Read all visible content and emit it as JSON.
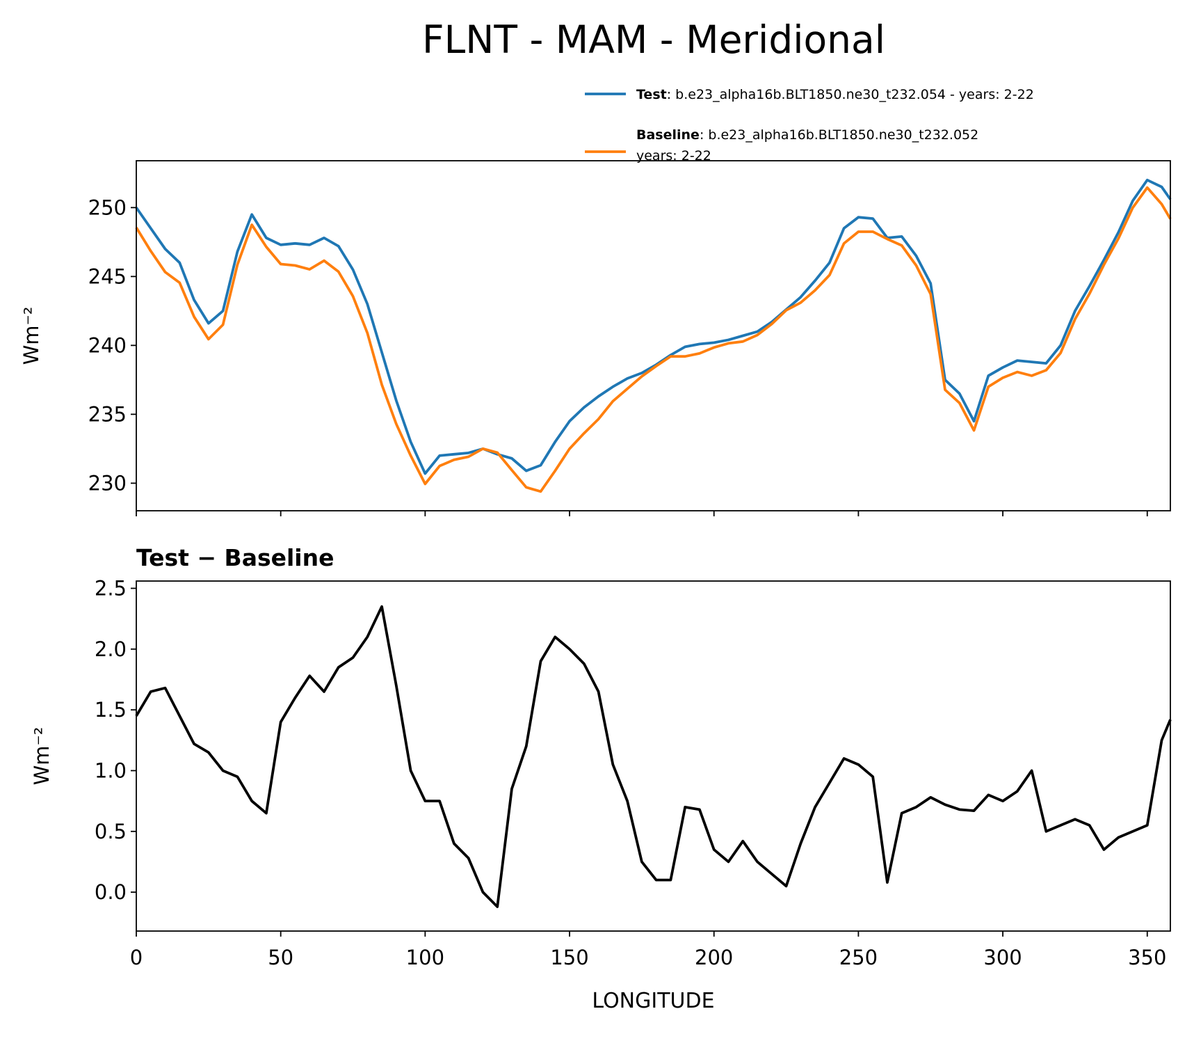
{
  "chart_data": [
    {
      "type": "line",
      "title": "FLNT - MAM - Meridional",
      "ylabel": "Wm⁻²",
      "x": [
        0,
        5,
        10,
        15,
        20,
        25,
        30,
        35,
        40,
        45,
        50,
        55,
        60,
        65,
        70,
        75,
        80,
        85,
        90,
        95,
        100,
        105,
        110,
        115,
        120,
        125,
        130,
        135,
        140,
        145,
        150,
        155,
        160,
        165,
        170,
        175,
        180,
        185,
        190,
        195,
        200,
        205,
        210,
        215,
        220,
        225,
        230,
        235,
        240,
        245,
        250,
        255,
        260,
        265,
        270,
        275,
        280,
        285,
        290,
        295,
        300,
        305,
        310,
        315,
        320,
        325,
        330,
        335,
        340,
        345,
        350,
        355,
        358
      ],
      "series": [
        {
          "name": "Test",
          "label_lines": [
            ": b.e23_alpha16b.BLT1850.ne30_t232.054 - years: 2-22"
          ],
          "color": "#1f77b4",
          "values": [
            250.0,
            248.5,
            247,
            246,
            243.3,
            241.6,
            242.5,
            246.8,
            249.5,
            247.8,
            247.3,
            247.4,
            247.3,
            247.8,
            247.2,
            245.5,
            243,
            239.5,
            236,
            233,
            230.7,
            232,
            232.1,
            232.2,
            232.5,
            232.1,
            231.8,
            230.9,
            231.3,
            233,
            234.5,
            235.5,
            236.3,
            237,
            237.6,
            238,
            238.6,
            239.3,
            239.9,
            240.1,
            240.2,
            240.4,
            240.7,
            241,
            241.7,
            242.6,
            243.5,
            244.7,
            246,
            248.5,
            249.3,
            249.2,
            247.8,
            247.9,
            246.5,
            244.5,
            237.5,
            236.5,
            234.5,
            237.8,
            238.4,
            238.9,
            238.8,
            238.7,
            240,
            242.5,
            244.3,
            246.2,
            248.2,
            250.5,
            252.0,
            251.5,
            250.6
          ]
        },
        {
          "name": "Baseline",
          "label_lines": [
            ": b.e23_alpha16b.BLT1850.ne30_t232.052",
            "years: 2-22"
          ],
          "color": "#ff7f0e",
          "values": [
            248.55,
            246.85,
            245.32,
            244.55,
            242.08,
            240.45,
            241.5,
            245.85,
            248.75,
            247.15,
            245.9,
            245.8,
            245.52,
            246.15,
            245.35,
            243.57,
            240.9,
            237.15,
            234.3,
            232.0,
            229.95,
            231.25,
            231.7,
            231.92,
            232.5,
            232.22,
            230.95,
            229.7,
            229.4,
            230.9,
            232.5,
            233.62,
            234.65,
            235.95,
            236.85,
            237.75,
            238.5,
            239.2,
            239.2,
            239.42,
            239.85,
            240.15,
            240.28,
            240.75,
            241.55,
            242.55,
            243.1,
            244.0,
            245.1,
            247.4,
            248.25,
            248.25,
            247.72,
            247.25,
            245.8,
            243.72,
            236.78,
            235.82,
            233.83,
            237.0,
            237.65,
            238.07,
            237.8,
            238.2,
            239.45,
            241.9,
            243.75,
            245.85,
            247.75,
            250.0,
            251.45,
            250.25,
            249.18
          ]
        }
      ],
      "xlim": [
        0,
        358
      ],
      "xticks": [
        0,
        50,
        100,
        150,
        200,
        250,
        300,
        350
      ],
      "ylim": [
        228.0,
        253.4
      ],
      "yticks": [
        230,
        235,
        240,
        245,
        250
      ]
    },
    {
      "type": "line",
      "title": "Test − Baseline",
      "ylabel": "Wm⁻²",
      "xlabel": "LONGITUDE",
      "x": [
        0,
        5,
        10,
        15,
        20,
        25,
        30,
        35,
        40,
        45,
        50,
        55,
        60,
        65,
        70,
        75,
        80,
        85,
        90,
        95,
        100,
        105,
        110,
        115,
        120,
        125,
        130,
        135,
        140,
        145,
        150,
        155,
        160,
        165,
        170,
        175,
        180,
        185,
        190,
        195,
        200,
        205,
        210,
        215,
        220,
        225,
        230,
        235,
        240,
        245,
        250,
        255,
        260,
        265,
        270,
        275,
        280,
        285,
        290,
        295,
        300,
        305,
        310,
        315,
        320,
        325,
        330,
        335,
        340,
        345,
        350,
        355,
        358
      ],
      "series": [
        {
          "color": "#000000",
          "values": [
            1.45,
            1.65,
            1.68,
            1.45,
            1.22,
            1.15,
            1.0,
            0.95,
            0.75,
            0.65,
            1.4,
            1.6,
            1.78,
            1.65,
            1.85,
            1.93,
            2.1,
            2.35,
            1.7,
            1.0,
            0.75,
            0.75,
            0.4,
            0.28,
            0.0,
            -0.12,
            0.85,
            1.2,
            1.9,
            2.1,
            2.0,
            1.88,
            1.65,
            1.05,
            0.75,
            0.25,
            0.1,
            0.1,
            0.7,
            0.68,
            0.35,
            0.25,
            0.42,
            0.25,
            0.15,
            0.05,
            0.4,
            0.7,
            0.9,
            1.1,
            1.05,
            0.95,
            0.08,
            0.65,
            0.7,
            0.78,
            0.72,
            0.68,
            0.67,
            0.8,
            0.75,
            0.83,
            1.0,
            0.5,
            0.55,
            0.6,
            0.55,
            0.35,
            0.45,
            0.5,
            0.55,
            1.25,
            1.42
          ]
        }
      ],
      "xlim": [
        0,
        358
      ],
      "xticks": [
        0,
        50,
        100,
        150,
        200,
        250,
        300,
        350
      ],
      "ylim": [
        -0.32,
        2.56
      ],
      "yticks": [
        {
          "value": 0,
          "label": "0.0"
        },
        0.5,
        {
          "value": 1,
          "label": "1.0"
        },
        1.5,
        {
          "value": 2,
          "label": "2.0"
        },
        2.5
      ]
    }
  ]
}
